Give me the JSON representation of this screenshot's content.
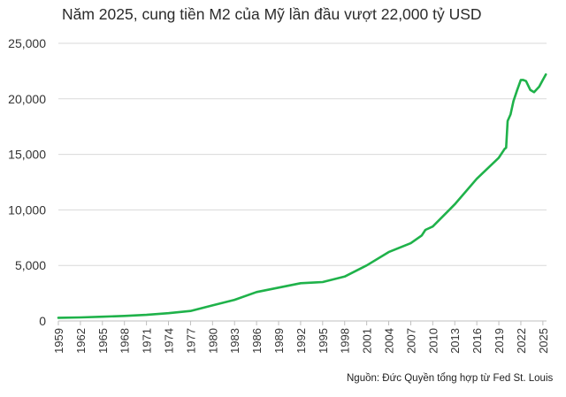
{
  "chart_data": {
    "type": "line",
    "title": "Năm 2025, cung tiền M2 của Mỹ lần đầu vượt 22,000 tỷ USD",
    "xlabel": "",
    "ylabel": "",
    "source_note": "Nguồn: Đức Quyền tổng hợp từ Fed St. Louis",
    "ylim": [
      0,
      25000
    ],
    "xlim": [
      1959,
      2025.5
    ],
    "y_ticks": [
      "0",
      "5,000",
      "10,000",
      "15,000",
      "20,000",
      "25,000"
    ],
    "y_tick_values": [
      0,
      5000,
      10000,
      15000,
      20000,
      25000
    ],
    "x_ticks": [
      "1959",
      "1962",
      "1965",
      "1968",
      "1971",
      "1974",
      "1977",
      "1980",
      "1983",
      "1986",
      "1989",
      "1992",
      "1995",
      "1998",
      "2001",
      "2004",
      "2007",
      "2010",
      "2013",
      "2016",
      "2019",
      "2022",
      "2025"
    ],
    "grid": "horizontal",
    "legend": "none",
    "line_color": "#1fb24a",
    "series": [
      {
        "x": [
          1959,
          1962,
          1965,
          1968,
          1971,
          1974,
          1977,
          1980,
          1983,
          1986,
          1989,
          1992,
          1994,
          1995,
          1998,
          2001,
          2004,
          2007,
          2008.5,
          2009,
          2010,
          2013,
          2016,
          2019,
          2019.8,
          2020.0,
          2020.2,
          2020.6,
          2021,
          2021.5,
          2022.0,
          2022.3,
          2022.7,
          2023.3,
          2023.8,
          2024.5,
          2025.0,
          2025.4
        ],
        "y": [
          290,
          320,
          380,
          450,
          550,
          700,
          900,
          1400,
          1900,
          2600,
          3000,
          3400,
          3470,
          3500,
          4000,
          5000,
          6200,
          7000,
          7700,
          8200,
          8500,
          10500,
          12800,
          14700,
          15500,
          15600,
          18000,
          18600,
          19800,
          20800,
          21700,
          21700,
          21600,
          20800,
          20600,
          21100,
          21700,
          22200
        ]
      }
    ]
  }
}
